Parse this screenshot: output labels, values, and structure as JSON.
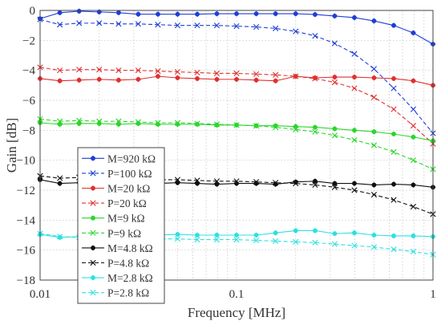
{
  "chart_data": {
    "type": "line",
    "title": "",
    "xlabel": "Frequency [MHz]",
    "ylabel": "Gain [dB]",
    "xscale": "log",
    "xlim": [
      0.01,
      1
    ],
    "ylim": [
      -18,
      0
    ],
    "grid": true,
    "legend_position": "bottom-left",
    "x_ticks": [
      0.01,
      0.1,
      1
    ],
    "x_tick_labels": [
      "0.01",
      "0.1",
      "1"
    ],
    "y_ticks": [
      0,
      -2,
      -4,
      -6,
      -8,
      -10,
      -12,
      -14,
      -16,
      -18
    ],
    "y_tick_labels": [
      "0",
      "−2",
      "−4",
      "−6",
      "−8",
      "−10",
      "−12",
      "−14",
      "−16",
      "−18"
    ],
    "x": [
      0.01,
      0.0126,
      0.0158,
      0.02,
      0.0251,
      0.0316,
      0.0398,
      0.0501,
      0.0631,
      0.0794,
      0.1,
      0.126,
      0.158,
      0.2,
      0.251,
      0.316,
      0.398,
      0.501,
      0.631,
      0.794,
      1.0
    ],
    "series": [
      {
        "name": "M=920 kΩ",
        "color": "#1f3fd6",
        "style": "solid",
        "marker": "star",
        "values": [
          -0.55,
          -0.15,
          -0.05,
          -0.1,
          -0.15,
          -0.25,
          -0.25,
          -0.25,
          -0.25,
          -0.22,
          -0.22,
          -0.22,
          -0.22,
          -0.22,
          -0.27,
          -0.37,
          -0.48,
          -0.7,
          -1.0,
          -1.5,
          -2.25
        ]
      },
      {
        "name": "P=100 kΩ",
        "color": "#1f3fd6",
        "style": "dashed",
        "marker": "x",
        "values": [
          -0.6,
          -0.95,
          -0.85,
          -0.85,
          -0.9,
          -0.9,
          -0.95,
          -1.0,
          -1.0,
          -1.0,
          -1.05,
          -1.1,
          -1.2,
          -1.4,
          -1.7,
          -2.2,
          -2.9,
          -3.9,
          -5.2,
          -6.6,
          -8.2
        ]
      },
      {
        "name": "M=20 kΩ",
        "color": "#e03030",
        "style": "solid",
        "marker": "star",
        "values": [
          -4.55,
          -4.7,
          -4.65,
          -4.6,
          -4.65,
          -4.6,
          -4.4,
          -4.5,
          -4.55,
          -4.6,
          -4.6,
          -4.65,
          -4.7,
          -4.4,
          -4.5,
          -4.45,
          -4.45,
          -4.5,
          -4.55,
          -4.7,
          -5.0
        ]
      },
      {
        "name": "P=20 kΩ",
        "color": "#e03030",
        "style": "dashed",
        "marker": "x",
        "values": [
          -3.8,
          -4.0,
          -3.95,
          -3.95,
          -4.0,
          -4.0,
          -4.05,
          -4.1,
          -4.15,
          -4.2,
          -4.2,
          -4.25,
          -4.3,
          -4.4,
          -4.55,
          -4.8,
          -5.2,
          -5.8,
          -6.6,
          -7.7,
          -8.9
        ]
      },
      {
        "name": "M=9 kΩ",
        "color": "#2bd62b",
        "style": "solid",
        "marker": "star",
        "values": [
          -7.5,
          -7.6,
          -7.55,
          -7.55,
          -7.6,
          -7.55,
          -7.6,
          -7.6,
          -7.6,
          -7.65,
          -7.65,
          -7.7,
          -7.7,
          -7.75,
          -7.8,
          -7.9,
          -8.0,
          -8.1,
          -8.25,
          -8.45,
          -8.7
        ]
      },
      {
        "name": "P=9 kΩ",
        "color": "#2bd62b",
        "style": "dashed",
        "marker": "x",
        "values": [
          -7.25,
          -7.4,
          -7.35,
          -7.4,
          -7.4,
          -7.45,
          -7.5,
          -7.5,
          -7.55,
          -7.6,
          -7.65,
          -7.7,
          -7.8,
          -7.95,
          -8.1,
          -8.35,
          -8.65,
          -9.0,
          -9.45,
          -10.0,
          -10.6
        ]
      },
      {
        "name": "M=4.8 kΩ",
        "color": "#111111",
        "style": "solid",
        "marker": "star",
        "values": [
          -11.3,
          -11.55,
          -11.5,
          -11.5,
          -11.55,
          -11.5,
          -11.55,
          -11.5,
          -11.55,
          -11.6,
          -11.55,
          -11.55,
          -11.6,
          -11.45,
          -11.4,
          -11.55,
          -11.55,
          -11.65,
          -11.6,
          -11.65,
          -11.8
        ]
      },
      {
        "name": "P=4.8 kΩ",
        "color": "#111111",
        "style": "dashed",
        "marker": "x",
        "values": [
          -11.05,
          -11.2,
          -11.15,
          -11.2,
          -11.25,
          -11.3,
          -11.3,
          -11.3,
          -11.35,
          -11.4,
          -11.4,
          -11.45,
          -11.5,
          -11.55,
          -11.65,
          -11.8,
          -12.0,
          -12.3,
          -12.65,
          -13.1,
          -13.6
        ]
      },
      {
        "name": "M=2.8 kΩ",
        "color": "#2ee0e0",
        "style": "solid",
        "marker": "star",
        "values": [
          -14.95,
          -15.15,
          -15.1,
          -15.05,
          -15.1,
          -15.0,
          -15.0,
          -14.95,
          -15.0,
          -15.0,
          -15.0,
          -15.0,
          -14.85,
          -14.7,
          -14.7,
          -14.9,
          -14.85,
          -15.0,
          -15.05,
          -15.05,
          -15.1
        ]
      },
      {
        "name": "P=2.8 kΩ",
        "color": "#2ee0e0",
        "style": "dashed",
        "marker": "x",
        "values": [
          -14.9,
          -15.1,
          -15.15,
          -15.2,
          -15.2,
          -15.2,
          -15.25,
          -15.25,
          -15.3,
          -15.3,
          -15.3,
          -15.35,
          -15.4,
          -15.45,
          -15.5,
          -15.6,
          -15.7,
          -15.8,
          -15.95,
          -16.1,
          -16.3
        ]
      }
    ]
  }
}
